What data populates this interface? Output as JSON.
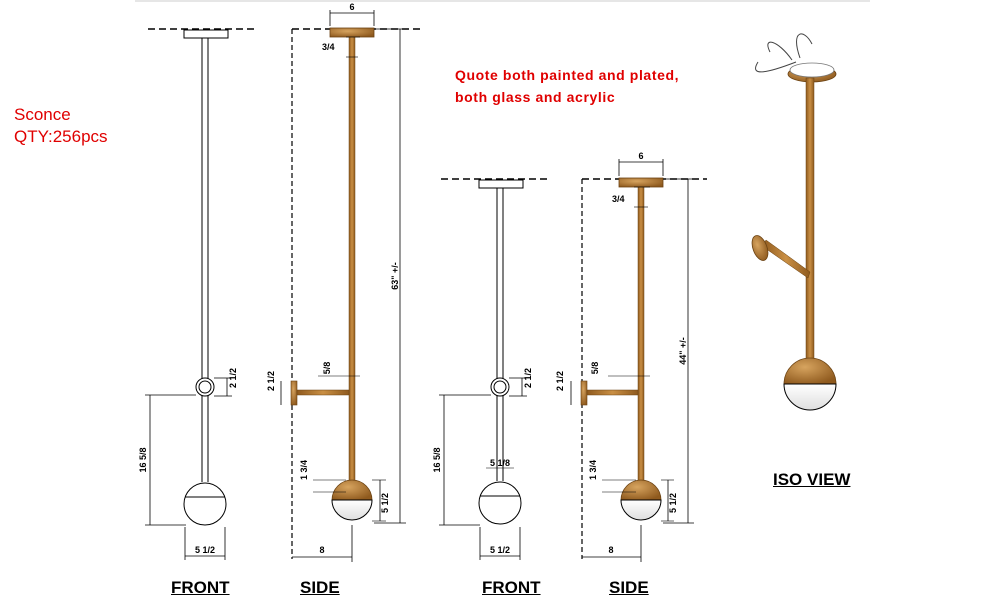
{
  "header": {
    "title_line1": "Sconce",
    "title_line2": "QTY:256pcs"
  },
  "note": {
    "line1": "Quote both painted and plated,",
    "line2": "both glass and acrylic"
  },
  "views": {
    "front_1": "FRONT",
    "side_1": "SIDE",
    "front_2": "FRONT",
    "side_2": "SIDE",
    "iso": "ISO VIEW"
  },
  "dims": {
    "canopy_width": "6",
    "canopy_depth": "3/4",
    "overall_height_1": "63\" +/-",
    "overall_height_2": "44\" +/-",
    "arm_dia": "5/8",
    "backplate_height": "2 1/2",
    "drop_to_bottom": "16 5/8",
    "globe_width": "5 1/2",
    "globe_height": "5 1/2",
    "cup_height": "1 3/4",
    "projection": "8",
    "cup_width": "5 1/8",
    "ring_height": "2 1/2"
  },
  "colors": {
    "bronze": "#b5782d",
    "note_red": "#e00000"
  }
}
